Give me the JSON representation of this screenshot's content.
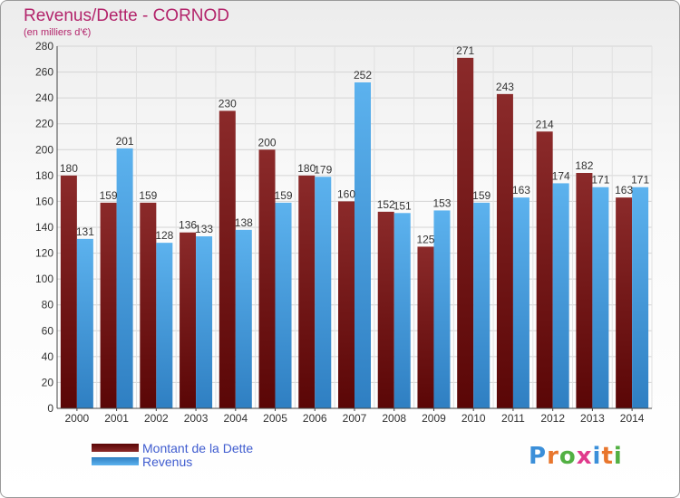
{
  "chart_data": {
    "type": "bar",
    "title": "Revenus/Dette - CORNOD",
    "subtitle": "(en milliers d'€)",
    "categories": [
      "2000",
      "2001",
      "2002",
      "2003",
      "2004",
      "2005",
      "2006",
      "2007",
      "2008",
      "2009",
      "2010",
      "2011",
      "2012",
      "2013",
      "2014"
    ],
    "series": [
      {
        "name": "Montant de la Dette",
        "color": "#7a1a1a",
        "values": [
          180,
          159,
          159,
          136,
          230,
          200,
          180,
          160,
          152,
          125,
          271,
          243,
          214,
          182,
          163
        ]
      },
      {
        "name": "Revenus",
        "color": "#4aa3e6",
        "values": [
          131,
          201,
          128,
          133,
          138,
          159,
          179,
          252,
          151,
          153,
          159,
          163,
          174,
          171,
          171
        ]
      }
    ],
    "ylim": [
      0,
      280
    ],
    "yticks": [
      0,
      20,
      40,
      60,
      80,
      100,
      120,
      140,
      160,
      180,
      200,
      220,
      240,
      260,
      280
    ],
    "grid": true,
    "legend_position": "bottom-left"
  },
  "logo": {
    "letters": [
      "P",
      "r",
      "o",
      "x",
      "i",
      "t",
      "i"
    ],
    "colors": [
      "#3b8fd9",
      "#e8762d",
      "#52b043",
      "#e03a8c",
      "#3b8fd9",
      "#e8762d",
      "#52b043"
    ]
  }
}
